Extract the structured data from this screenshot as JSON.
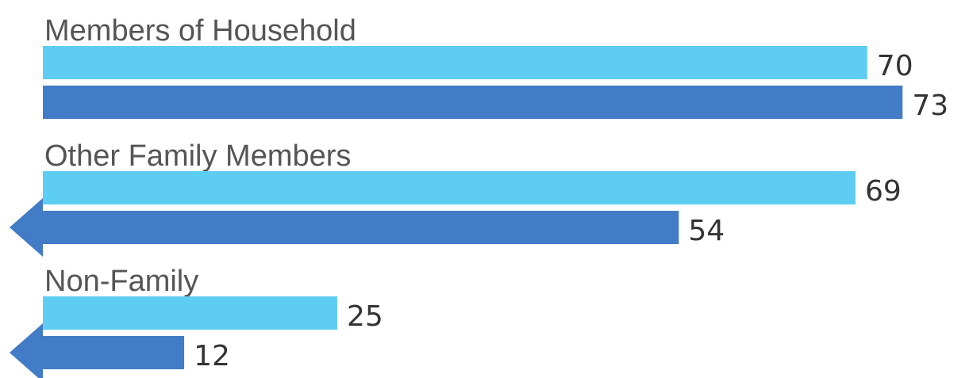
{
  "chart_data": {
    "type": "bar",
    "orientation": "horizontal",
    "categories": [
      "Members of Household",
      "Other Family Members",
      "Non-Family"
    ],
    "series": [
      {
        "color": "#5ecdf3",
        "values": [
          70,
          69,
          25
        ]
      },
      {
        "color": "#437cc6",
        "values": [
          73,
          54,
          12
        ]
      }
    ]
  }
}
